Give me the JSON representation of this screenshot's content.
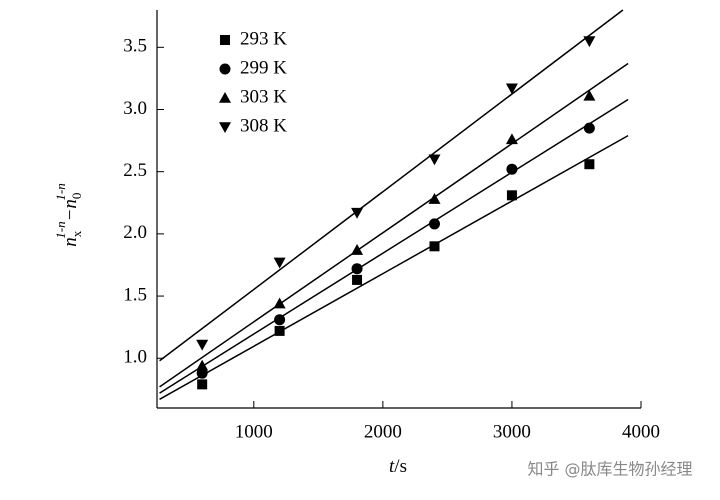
{
  "chart_data": {
    "type": "scatter",
    "xlabel_parts": [
      "t",
      "/s"
    ],
    "ylabel_parts": [
      "n",
      "x",
      "1-n",
      "−n",
      "0",
      "1-n"
    ],
    "watermark": "知乎 @肽库生物孙经理",
    "xlim": [
      250,
      4000
    ],
    "xticks": [
      1000,
      2000,
      3000,
      4000
    ],
    "ylim": [
      0.6,
      3.8
    ],
    "yticks": [
      {
        "value": 1,
        "label": "1.0"
      },
      1.5,
      {
        "value": 2,
        "label": "2.0"
      },
      2.5,
      {
        "value": 3,
        "label": "3.0"
      },
      3.5
    ],
    "x": [
      600,
      1200,
      1800,
      2400,
      3000,
      3600
    ],
    "series": [
      {
        "name": "293 K",
        "marker": "square",
        "color": "#000000",
        "values": [
          0.79,
          1.22,
          1.63,
          1.9,
          2.31,
          2.56
        ],
        "fit": {
          "x": [
            270,
            3900
          ],
          "y": [
            0.67,
            2.79
          ]
        }
      },
      {
        "name": "299 K",
        "marker": "circle",
        "color": "#000000",
        "values": [
          0.88,
          1.31,
          1.72,
          2.08,
          2.52,
          2.85
        ],
        "fit": {
          "x": [
            270,
            3900
          ],
          "y": [
            0.72,
            3.08
          ]
        }
      },
      {
        "name": "303 K",
        "marker": "triangle",
        "color": "#000000",
        "values": [
          0.94,
          1.44,
          1.87,
          2.28,
          2.76,
          3.11
        ],
        "fit": {
          "x": [
            270,
            3900
          ],
          "y": [
            0.77,
            3.37
          ]
        }
      },
      {
        "name": "308 K",
        "marker": "triangle-down",
        "color": "#000000",
        "values": [
          1.11,
          1.77,
          2.17,
          2.6,
          3.17,
          3.55
        ],
        "fit": {
          "x": [
            270,
            3860
          ],
          "y": [
            0.98,
            3.8
          ]
        }
      }
    ],
    "legend": "upper left"
  }
}
